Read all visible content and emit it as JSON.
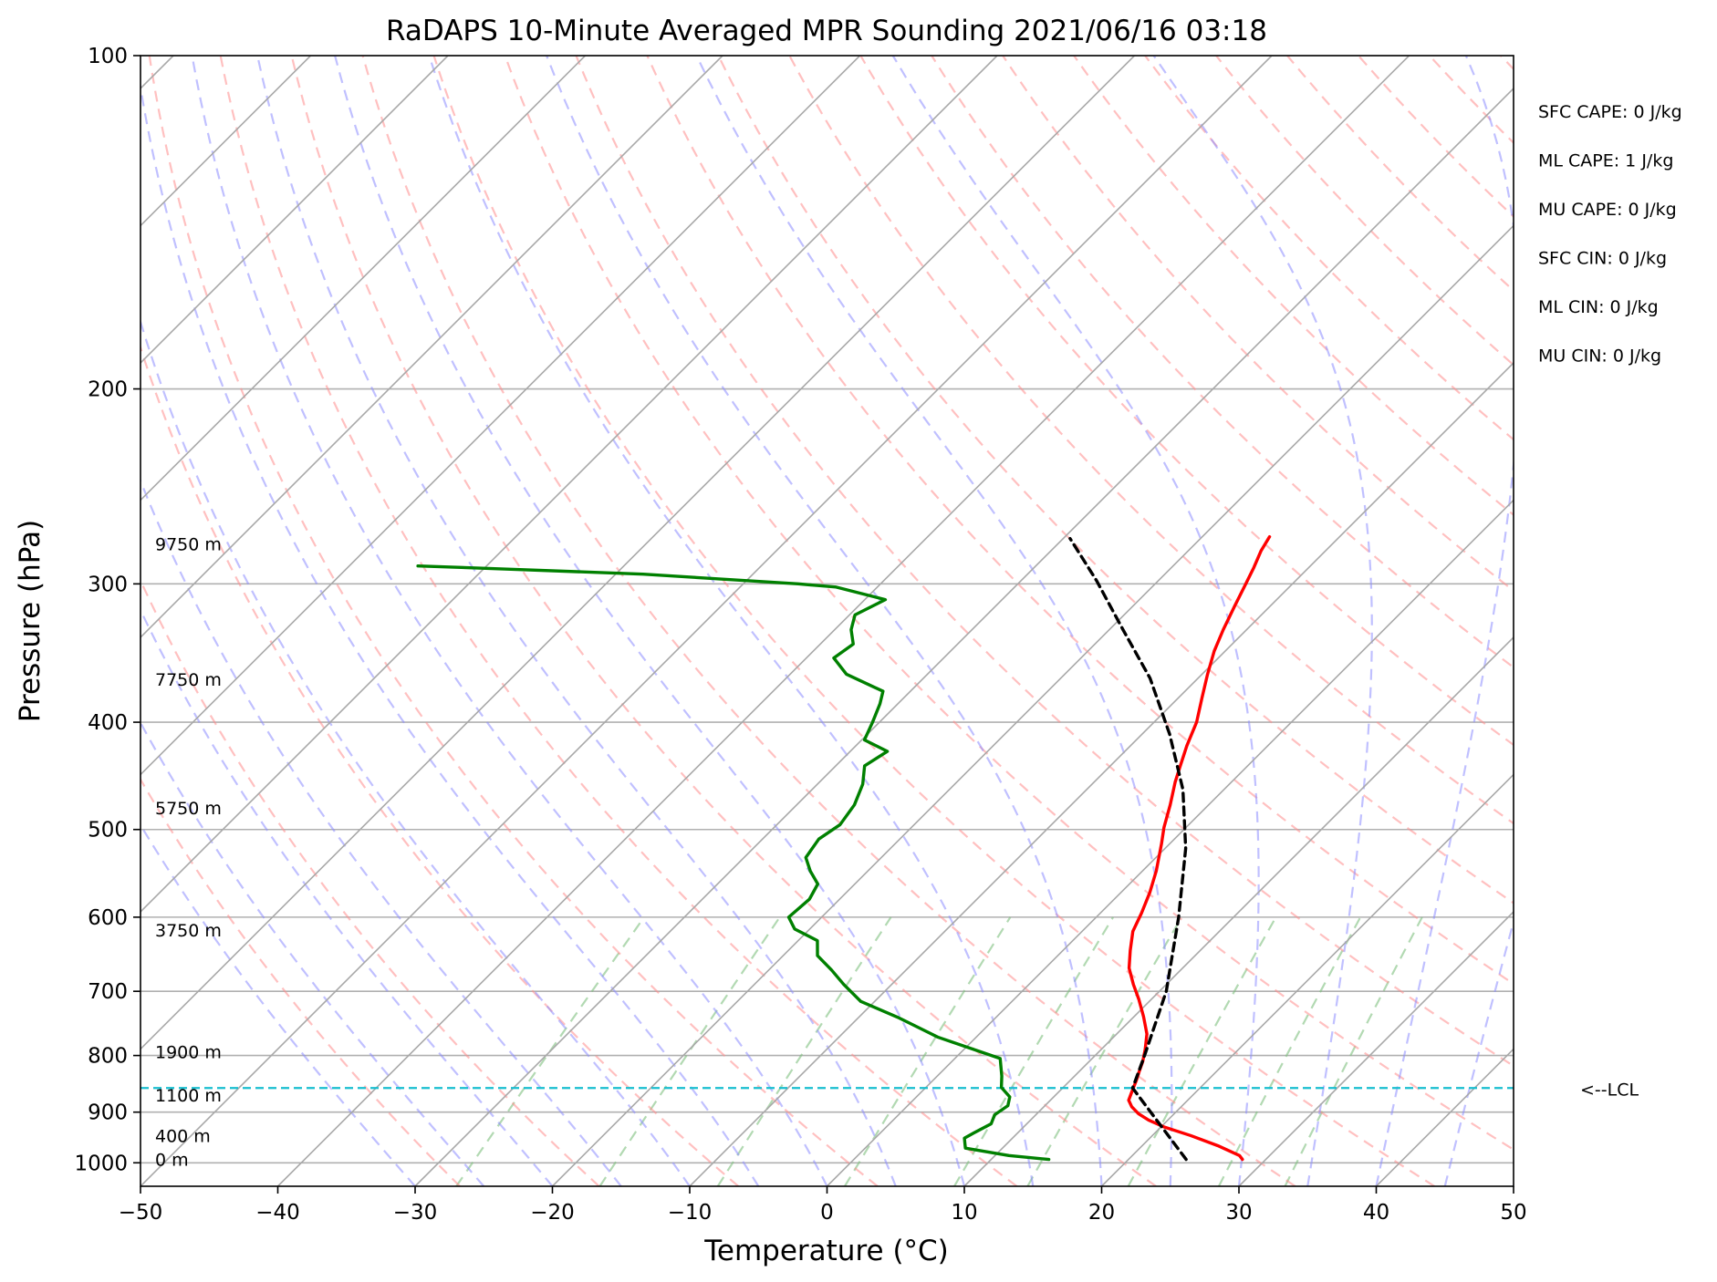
{
  "chart_data": {
    "type": "line",
    "subtype": "skew-t-log-p",
    "title": "RaDAPS 10-Minute Averaged MPR Sounding 2021/06/16 03:18",
    "xlabel": "Temperature (°C)",
    "ylabel": "Pressure (hPa)",
    "xlim": [
      -50,
      50
    ],
    "ylim": [
      1050,
      100
    ],
    "y_scale": "log",
    "x_ticks": [
      {
        "value": -50,
        "label": "−50"
      },
      {
        "value": -40,
        "label": "−40"
      },
      {
        "value": -30,
        "label": "−30"
      },
      {
        "value": -20,
        "label": "−20"
      },
      {
        "value": -10,
        "label": "−10"
      },
      {
        "value": 0,
        "label": "0"
      },
      {
        "value": 10,
        "label": "10"
      },
      {
        "value": 20,
        "label": "20"
      },
      {
        "value": 30,
        "label": "30"
      },
      {
        "value": 40,
        "label": "40"
      },
      {
        "value": 50,
        "label": "50"
      }
    ],
    "y_ticks": [
      {
        "value": 100,
        "label": "100"
      },
      {
        "value": 200,
        "label": "200"
      },
      {
        "value": 300,
        "label": "300"
      },
      {
        "value": 400,
        "label": "400"
      },
      {
        "value": 500,
        "label": "500"
      },
      {
        "value": 600,
        "label": "600"
      },
      {
        "value": 700,
        "label": "700"
      },
      {
        "value": 800,
        "label": "800"
      },
      {
        "value": 900,
        "label": "900"
      },
      {
        "value": 1000,
        "label": "1000"
      }
    ],
    "grid": true,
    "height_labels": [
      {
        "pressure": 276,
        "label": "9750 m"
      },
      {
        "pressure": 366,
        "label": "7750 m"
      },
      {
        "pressure": 478,
        "label": "5750 m"
      },
      {
        "pressure": 616,
        "label": "3750 m"
      },
      {
        "pressure": 794,
        "label": "1900 m"
      },
      {
        "pressure": 869,
        "label": "1100 m"
      },
      {
        "pressure": 945,
        "label": "400 m"
      },
      {
        "pressure": 993,
        "label": "0 m"
      }
    ],
    "lcl": {
      "pressure": 856,
      "label": "<--LCL",
      "color": "#17becf"
    },
    "stats": [
      "SFC CAPE: 0 J/kg",
      "ML CAPE: 1 J/kg",
      "MU CAPE: 0 J/kg",
      "SFC CIN: 0 J/kg",
      "ML CIN: 0 J/kg",
      "MU CIN: 0 J/kg"
    ],
    "series": [
      {
        "role": "temperature",
        "color": "#ff0000",
        "points": [
          [
            28.3,
            993
          ],
          [
            27.8,
            985
          ],
          [
            25.5,
            965
          ],
          [
            22.8,
            945
          ],
          [
            20.2,
            928
          ],
          [
            18.6,
            915
          ],
          [
            17.4,
            903
          ],
          [
            16.4,
            890
          ],
          [
            15.7,
            878
          ],
          [
            15.4,
            866
          ],
          [
            15.1,
            854
          ],
          [
            14.8,
            842
          ],
          [
            14.4,
            828
          ],
          [
            13.9,
            810
          ],
          [
            13.2,
            790
          ],
          [
            12.2,
            765
          ],
          [
            10.7,
            738
          ],
          [
            9.1,
            712
          ],
          [
            7.6,
            690
          ],
          [
            6.1,
            667
          ],
          [
            4.9,
            643
          ],
          [
            3.7,
            618
          ],
          [
            3.0,
            595
          ],
          [
            2.1,
            570
          ],
          [
            1.0,
            545
          ],
          [
            -0.6,
            515
          ],
          [
            -1.6,
            498
          ],
          [
            -2.8,
            475
          ],
          [
            -4.1,
            453
          ],
          [
            -4.8,
            440
          ],
          [
            -5.9,
            420
          ],
          [
            -6.9,
            400
          ],
          [
            -8.3,
            380
          ],
          [
            -9.6,
            362
          ],
          [
            -10.8,
            345
          ],
          [
            -11.7,
            330
          ],
          [
            -12.6,
            314
          ],
          [
            -13.4,
            300
          ],
          [
            -14.0,
            290
          ],
          [
            -14.7,
            280
          ],
          [
            -15.1,
            272
          ]
        ]
      },
      {
        "role": "dewpoint",
        "color": "#008000",
        "points": [
          [
            14.2,
            993
          ],
          [
            11.0,
            985
          ],
          [
            7.3,
            970
          ],
          [
            6.9,
            960
          ],
          [
            6.5,
            950
          ],
          [
            6.8,
            940
          ],
          [
            7.4,
            922
          ],
          [
            7.0,
            905
          ],
          [
            7.3,
            888
          ],
          [
            6.8,
            872
          ],
          [
            5.5,
            855
          ],
          [
            4.7,
            835
          ],
          [
            3.3,
            805
          ],
          [
            -2.8,
            770
          ],
          [
            -7.0,
            740
          ],
          [
            -11.0,
            715
          ],
          [
            -13.5,
            690
          ],
          [
            -15.4,
            670
          ],
          [
            -17.5,
            650
          ],
          [
            -18.6,
            630
          ],
          [
            -21.1,
            615
          ],
          [
            -22.4,
            600
          ],
          [
            -22.2,
            578
          ],
          [
            -22.7,
            560
          ],
          [
            -24.2,
            545
          ],
          [
            -25.5,
            530
          ],
          [
            -25.9,
            510
          ],
          [
            -25.4,
            495
          ],
          [
            -25.8,
            475
          ],
          [
            -26.7,
            455
          ],
          [
            -27.9,
            438
          ],
          [
            -27.3,
            425
          ],
          [
            -29.8,
            415
          ],
          [
            -30.5,
            400
          ],
          [
            -31.3,
            385
          ],
          [
            -32.0,
            375
          ],
          [
            -32.9,
            372
          ],
          [
            -35.9,
            362
          ],
          [
            -38.0,
            350
          ],
          [
            -37.6,
            340
          ],
          [
            -38.8,
            330
          ],
          [
            -39.6,
            320
          ],
          [
            -38.5,
            310
          ],
          [
            -43.0,
            302
          ],
          [
            -46.0,
            300
          ],
          [
            -58.0,
            294
          ],
          [
            -68.0,
            291
          ],
          [
            -75.0,
            289
          ]
        ]
      },
      {
        "role": "parcel",
        "color": "#000000",
        "dash": "9,6",
        "points": [
          [
            24.2,
            993
          ],
          [
            15.1,
            856
          ],
          [
            13.6,
            800
          ],
          [
            10.5,
            700
          ],
          [
            6.0,
            600
          ],
          [
            1.5,
            520
          ],
          [
            -3.0,
            460
          ],
          [
            -8.0,
            410
          ],
          [
            -13.5,
            365
          ],
          [
            -19.0,
            330
          ],
          [
            -24.5,
            298
          ],
          [
            -29.5,
            273
          ]
        ]
      }
    ]
  }
}
